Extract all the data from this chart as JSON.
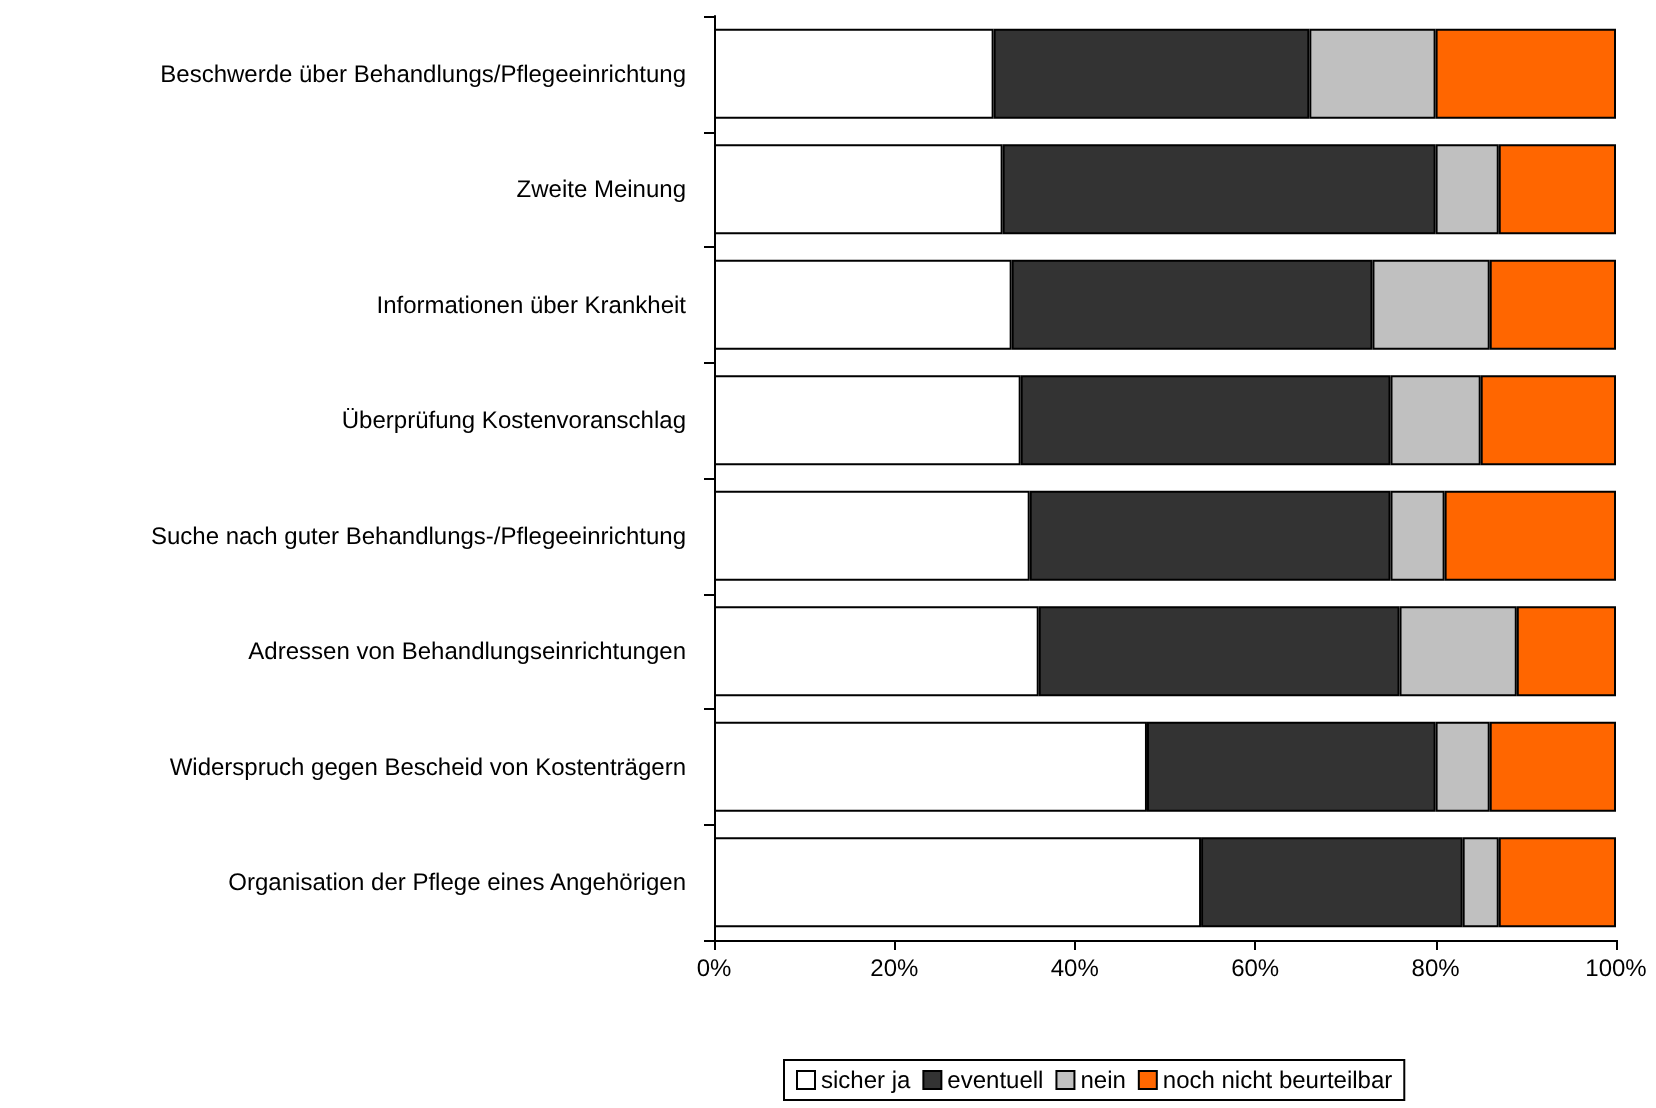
{
  "chart_data": {
    "type": "bar",
    "orientation": "horizontal",
    "stacked": true,
    "categories": [
      "Beschwerde über Behandlungs/Pflegeeinrichtung",
      "Zweite Meinung",
      "Informationen über Krankheit",
      "Überprüfung Kostenvoranschlag",
      "Suche nach guter Behandlungs-/Pflegeeinrichtung",
      "Adressen von Behandlungseinrichtungen",
      "Widerspruch gegen Bescheid von Kostenträgern",
      "Organisation der Pflege eines Angehörigen"
    ],
    "series": [
      {
        "name": "sicher ja",
        "color": "#ffffff",
        "values": [
          31,
          32,
          33,
          34,
          35,
          36,
          48,
          54
        ]
      },
      {
        "name": "eventuell",
        "color": "#333333",
        "values": [
          35,
          48,
          40,
          41,
          40,
          40,
          32,
          29
        ]
      },
      {
        "name": "nein",
        "color": "#c0c0c0",
        "values": [
          14,
          7,
          13,
          10,
          6,
          13,
          6,
          4
        ]
      },
      {
        "name": "noch nicht beurteilbar",
        "color": "#ff6600",
        "values": [
          20,
          13,
          14,
          15,
          19,
          11,
          14,
          13
        ]
      }
    ],
    "xlim": [
      0,
      100
    ],
    "xticks": [
      {
        "value": 0,
        "label": "0%"
      },
      {
        "value": 20,
        "label": "20%"
      },
      {
        "value": 40,
        "label": "40%"
      },
      {
        "value": 60,
        "label": "60%"
      },
      {
        "value": 80,
        "label": "80%"
      },
      {
        "value": 100,
        "label": "100%"
      }
    ],
    "grid": false,
    "legend": "bottom"
  }
}
